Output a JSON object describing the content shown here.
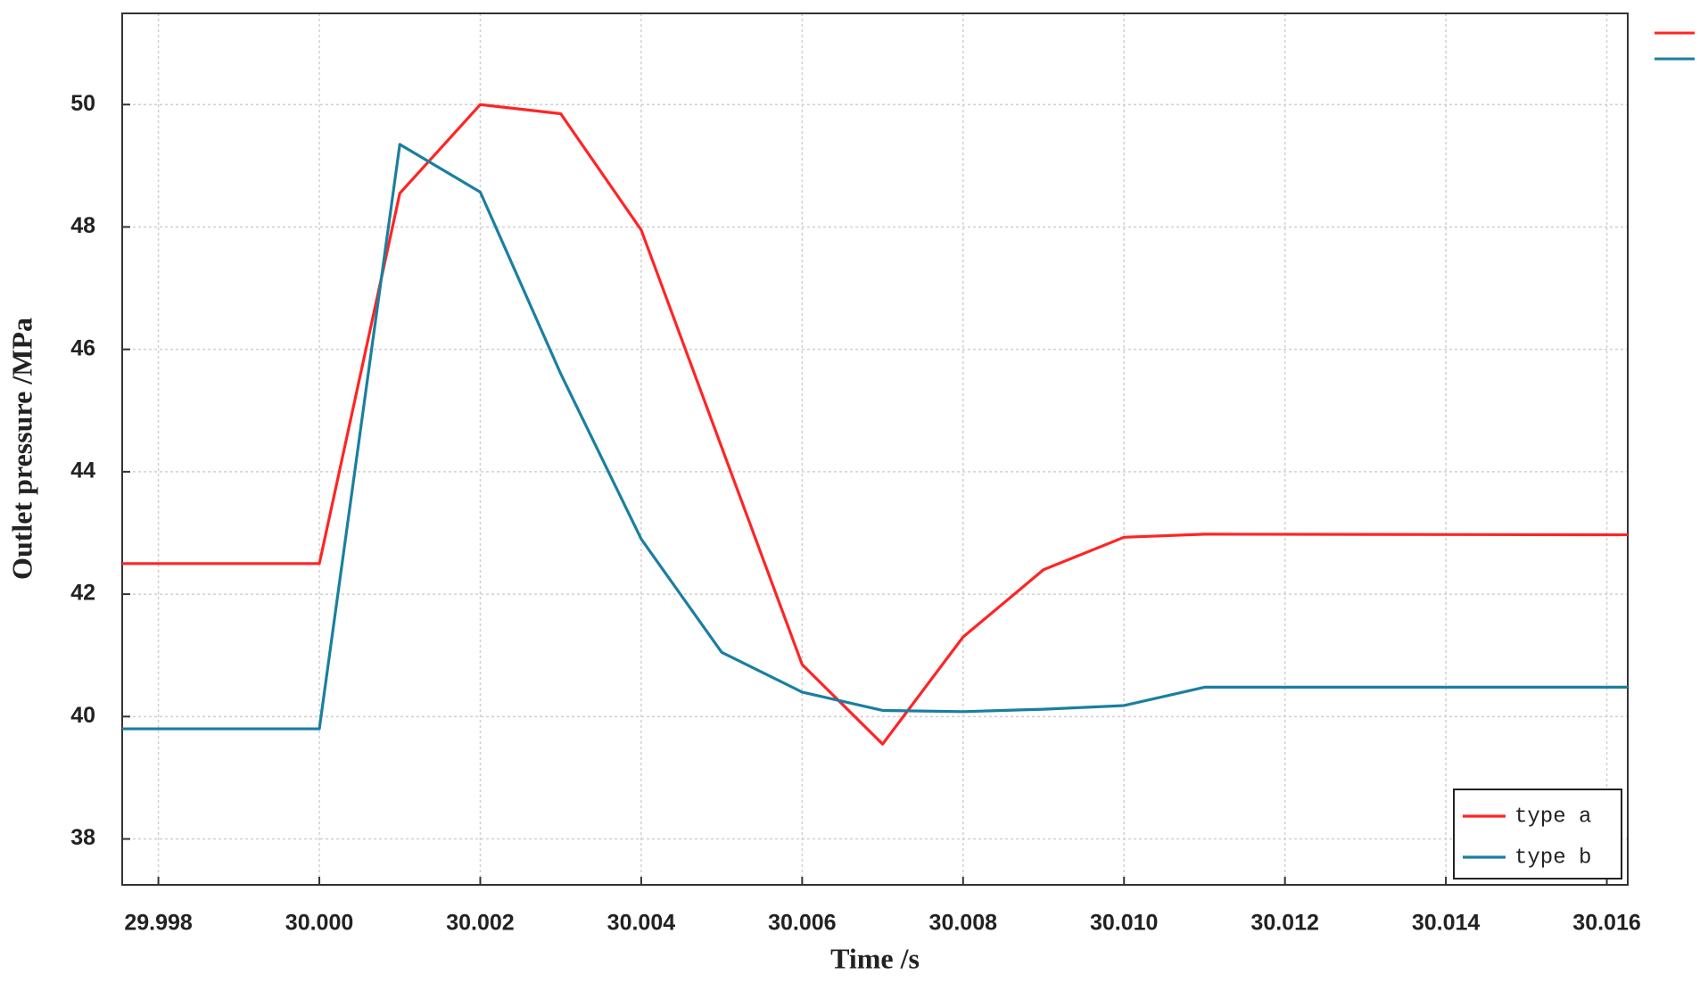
{
  "chart_data": {
    "type": "line",
    "x_label": "Time /s",
    "y_label": "Outlet pressure /MPa",
    "x": [
      29.99755,
      30.0,
      30.001,
      30.002,
      30.003,
      30.004,
      30.005,
      30.006,
      30.007,
      30.008,
      30.009,
      30.01,
      30.011,
      30.01626
    ],
    "series": [
      {
        "name": "type a",
        "color": "#ff2424",
        "values": [
          42.5,
          42.5,
          48.55,
          50.0,
          49.85,
          47.95,
          44.4,
          40.85,
          39.55,
          41.3,
          42.4,
          42.93,
          42.98,
          42.97
        ]
      },
      {
        "name": "type b",
        "color": "#1a7fa0",
        "values": [
          39.8,
          39.8,
          49.35,
          48.57,
          45.6,
          42.9,
          41.05,
          40.4,
          40.1,
          40.08,
          40.12,
          40.18,
          40.48,
          40.48
        ]
      }
    ],
    "xlim": [
      29.99755,
      30.01626
    ],
    "ylim": [
      37.25,
      51.49
    ],
    "xticks": [
      {
        "value": 29.998,
        "label": "29.998"
      },
      {
        "value": 30.0,
        "label": "30.000"
      },
      {
        "value": 30.002,
        "label": "30.002"
      },
      {
        "value": 30.004,
        "label": "30.004"
      },
      {
        "value": 30.006,
        "label": "30.006"
      },
      {
        "value": 30.008,
        "label": "30.008"
      },
      {
        "value": 30.01,
        "label": "30.010"
      },
      {
        "value": 30.012,
        "label": "30.012"
      },
      {
        "value": 30.014,
        "label": "30.014"
      },
      {
        "value": 30.016,
        "label": "30.016"
      }
    ],
    "yticks": [
      38,
      40,
      42,
      44,
      46,
      48,
      50
    ],
    "grid": true,
    "legend": "lower right"
  }
}
